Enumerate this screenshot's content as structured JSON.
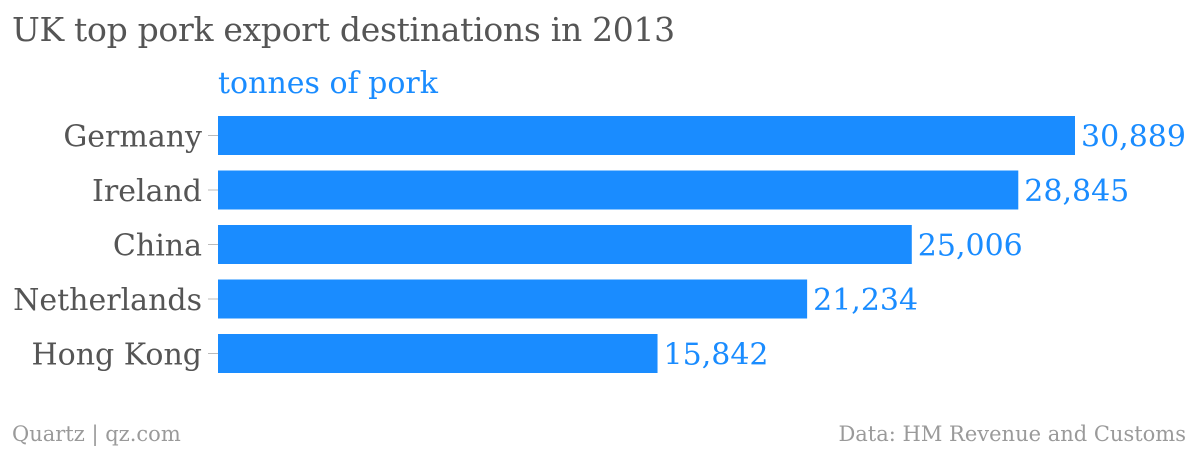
{
  "title": "UK top pork export destinations in 2013",
  "footer": {
    "credit": "Quartz | qz.com",
    "source": "Data: HM Revenue and Customs"
  },
  "colors": {
    "bar": "#1a8cff",
    "label": "#555555",
    "value": "#1a8cff",
    "unit": "#1a8cff",
    "footer": "#9a9a9a"
  },
  "chart_data": {
    "type": "bar",
    "orientation": "horizontal",
    "title": "UK top pork export destinations in 2013",
    "unit_label": "tonnes of pork",
    "categories": [
      "Germany",
      "Ireland",
      "China",
      "Netherlands",
      "Hong Kong"
    ],
    "values": [
      30889,
      28845,
      25006,
      21234,
      15842
    ],
    "value_labels": [
      "30,889",
      "28,845",
      "25,006",
      "21,234",
      "15,842"
    ],
    "xlim": [
      0,
      30889
    ],
    "grid": false,
    "legend": "none"
  }
}
